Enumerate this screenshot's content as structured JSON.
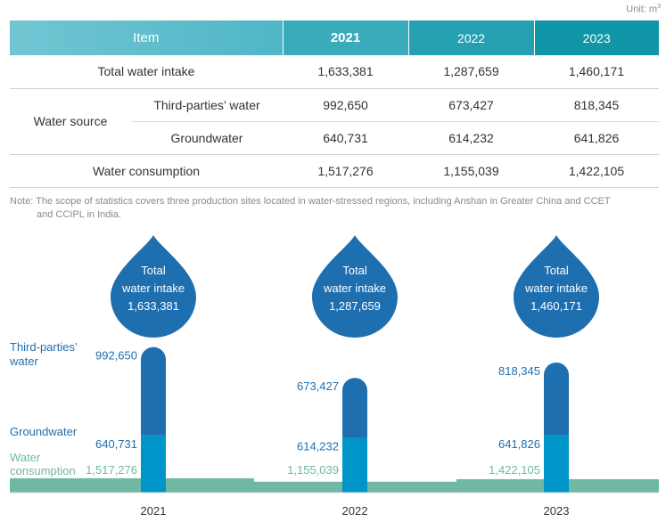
{
  "unit": {
    "label": "Unit: m",
    "sup": "3"
  },
  "table": {
    "headers": {
      "item": "Item",
      "y2021": "2021",
      "y2022": "2022",
      "y2023": "2023"
    },
    "total_intake": {
      "label": "Total water intake",
      "v2021": "1,633,381",
      "v2022": "1,287,659",
      "v2023": "1,460,171"
    },
    "water_source": {
      "label": "Water source"
    },
    "third_parties": {
      "label": "Third-parties’ water",
      "v2021": "992,650",
      "v2022": "673,427",
      "v2023": "818,345"
    },
    "groundwater": {
      "label": "Groundwater",
      "v2021": "640,731",
      "v2022": "614,232",
      "v2023": "641,826"
    },
    "consumption": {
      "label": "Water consumption",
      "v2021": "1,517,276",
      "v2022": "1,155,039",
      "v2023": "1,422,105"
    }
  },
  "note": {
    "line1": "Note: The scope of statistics covers three production sites located in water-stressed regions, including Anshan in Greater China and CCET",
    "line2": "and CCIPL in India."
  },
  "colors": {
    "third_parties": "#1e6fb0",
    "groundwater": "#0095c8",
    "consumption": "#6fb8a6",
    "drop": "#1e6fb0"
  },
  "chart_data": {
    "type": "bar",
    "categories": [
      "2021",
      "2022",
      "2023"
    ],
    "legend": {
      "third_parties": [
        "Third-parties’",
        "water"
      ],
      "groundwater": [
        "Groundwater"
      ],
      "consumption": [
        "Water",
        "consumption"
      ]
    },
    "drop_label": [
      "Total",
      "water intake"
    ],
    "total_intake": [
      1633381,
      1287659,
      1460171
    ],
    "total_intake_labels": [
      "1,633,381",
      "1,287,659",
      "1,460,171"
    ],
    "series": [
      {
        "key": "groundwater",
        "values": [
          640731,
          614232,
          641826
        ],
        "labels": [
          "640,731",
          "614,232",
          "641,826"
        ]
      },
      {
        "key": "third_parties",
        "values": [
          992650,
          673427,
          818345
        ],
        "labels": [
          "992,650",
          "673,427",
          "818,345"
        ]
      },
      {
        "key": "consumption",
        "values": [
          1517276,
          1155039,
          1422105
        ],
        "labels": [
          "1,517,276",
          "1,155,039",
          "1,422,105"
        ]
      }
    ]
  }
}
